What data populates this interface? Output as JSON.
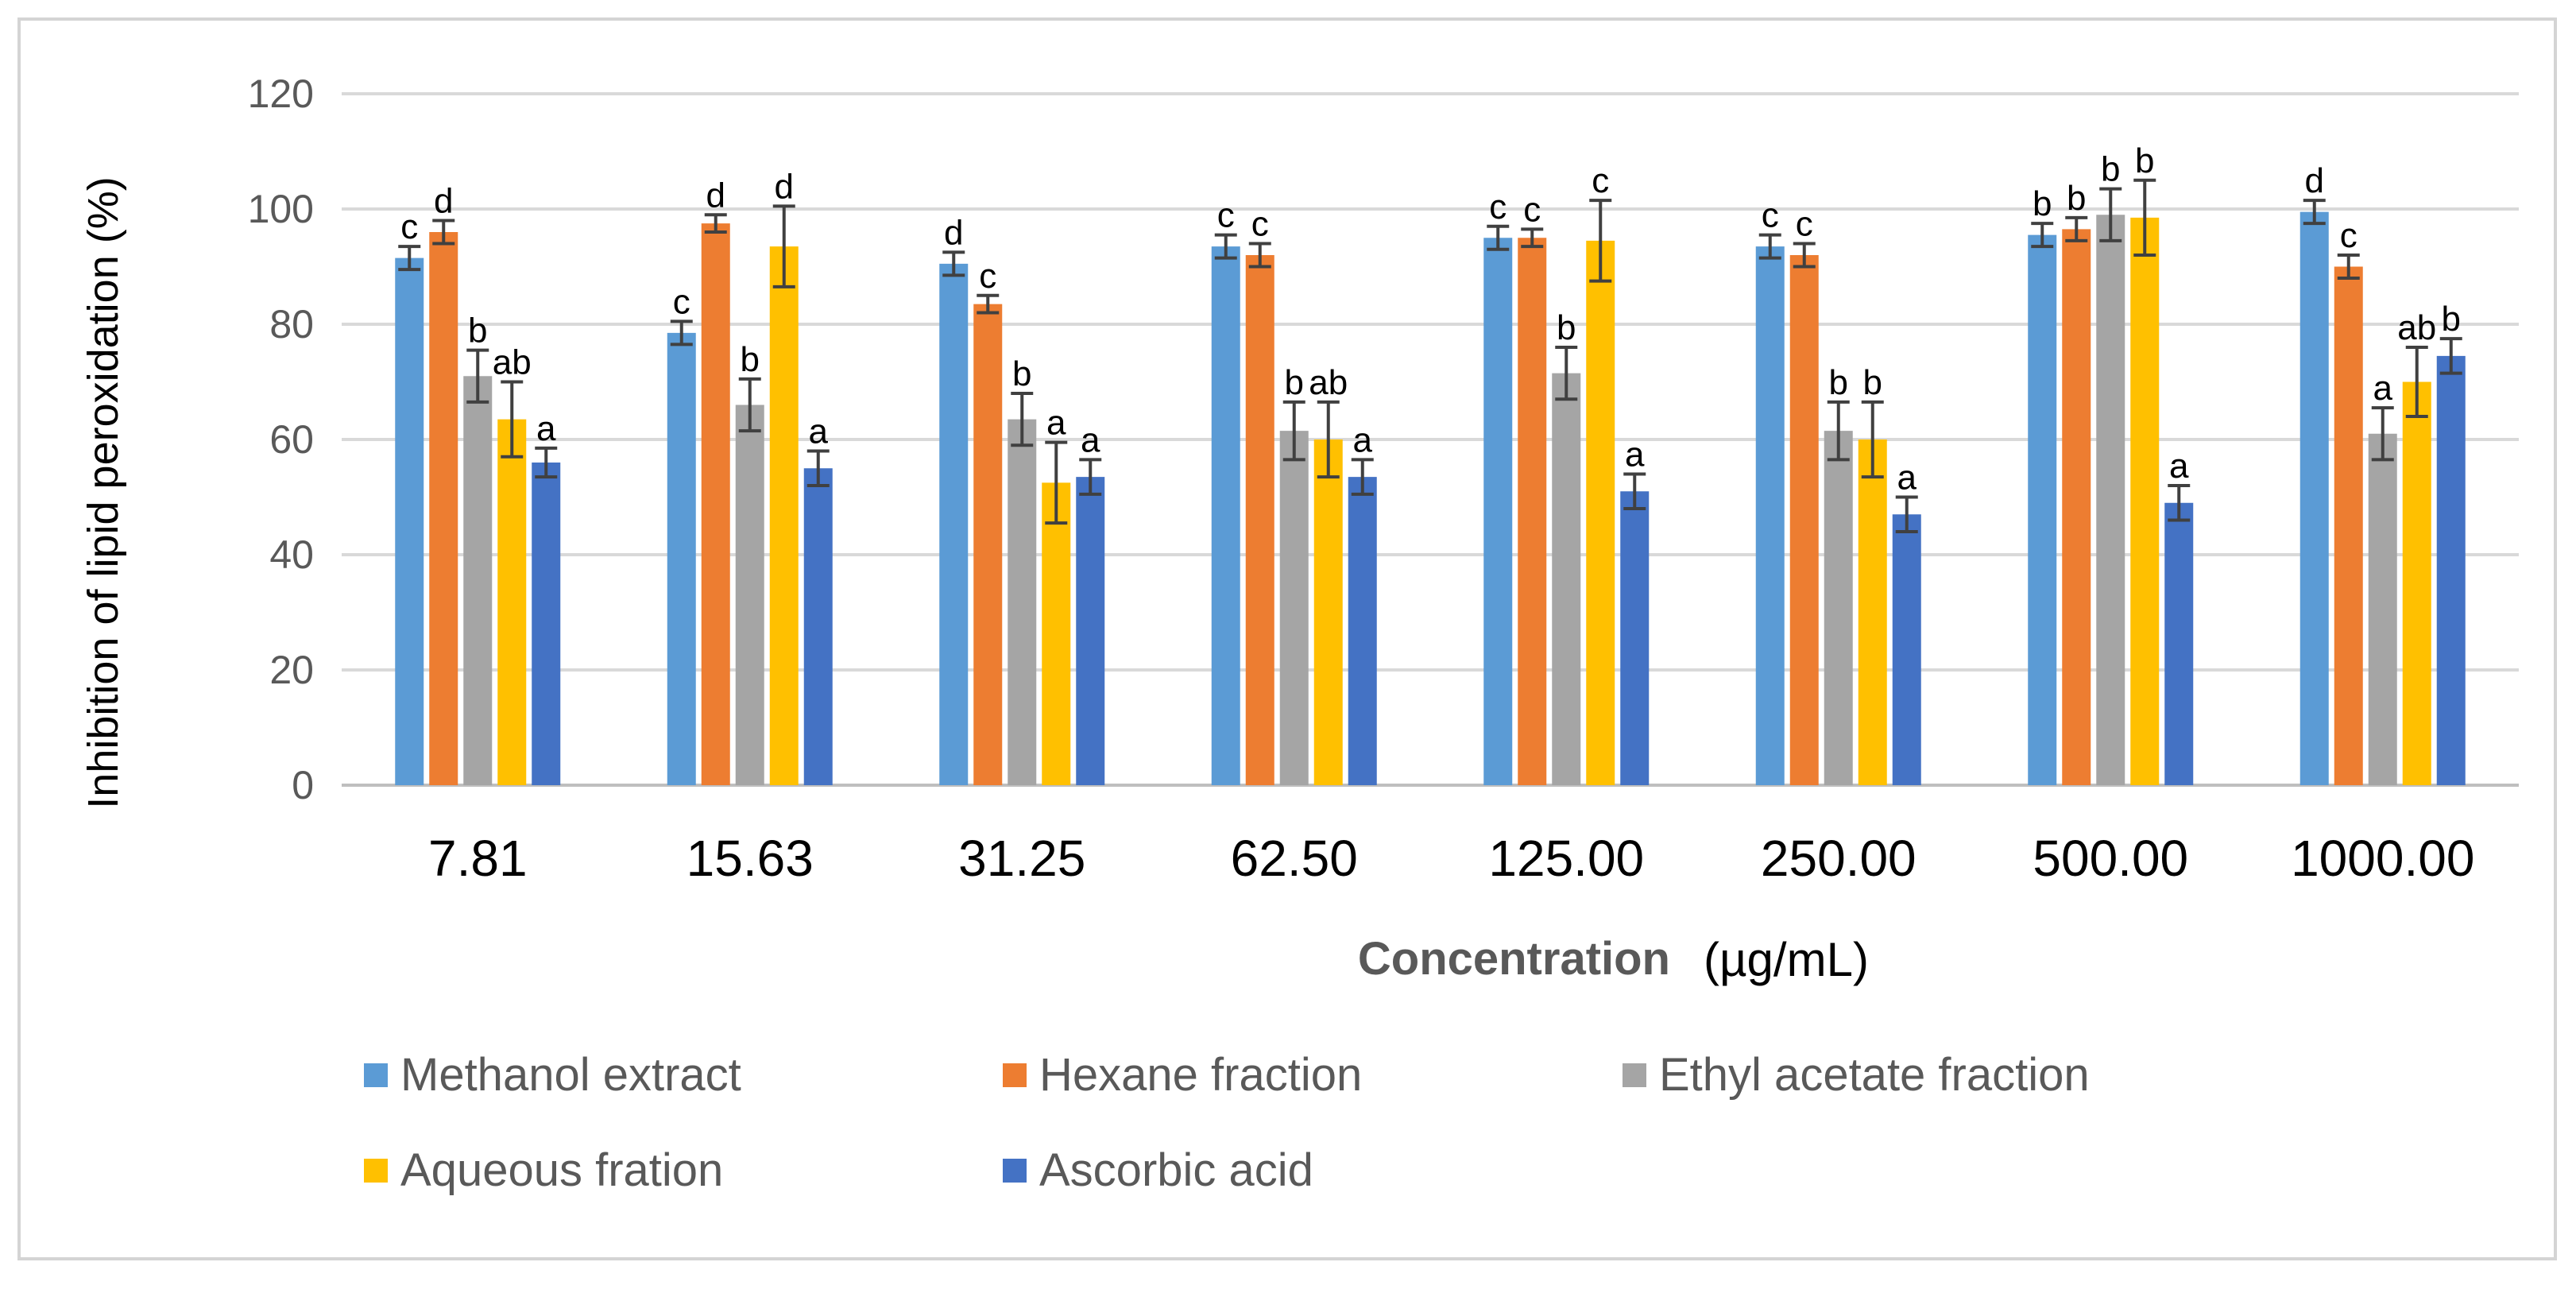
{
  "chart_data": {
    "type": "bar",
    "ylabel": "Inhibition of lipid peroxidation (%)",
    "xlabel": "Concentration",
    "xlabel_unit": "(µg/mL)",
    "ylim": [
      0,
      120
    ],
    "yticks": [
      0,
      20,
      40,
      60,
      80,
      100,
      120
    ],
    "grid": true,
    "legend_position": "bottom",
    "categories": [
      "7.81",
      "15.63",
      "31.25",
      "62.50",
      "125.00",
      "250.00",
      "500.00",
      "1000.00"
    ],
    "series": [
      {
        "name": "Methanol extract",
        "color": "#5b9bd5",
        "values": [
          91.5,
          78.5,
          90.5,
          93.5,
          95,
          93.5,
          95.5,
          99.5
        ],
        "errors": [
          2,
          2,
          2,
          2,
          2,
          2,
          2,
          2
        ],
        "labels": [
          "c",
          "c",
          "d",
          "c",
          "c",
          "c",
          "b",
          "d"
        ]
      },
      {
        "name": "Hexane fraction",
        "color": "#ed7d31",
        "values": [
          96,
          97.5,
          83.5,
          92,
          95,
          92,
          96.5,
          90
        ],
        "errors": [
          2,
          1.5,
          1.5,
          2,
          1.5,
          2,
          2,
          2
        ],
        "labels": [
          "d",
          "d",
          "c",
          "c",
          "c",
          "c",
          "b",
          "c"
        ]
      },
      {
        "name": "Ethyl acetate fraction",
        "color": "#a5a5a5",
        "values": [
          71,
          66,
          63.5,
          61.5,
          71.5,
          61.5,
          99,
          61
        ],
        "errors": [
          4.5,
          4.5,
          4.5,
          5,
          4.5,
          5,
          4.5,
          4.5
        ],
        "labels": [
          "b",
          "b",
          "b",
          "b",
          "b",
          "b",
          "b",
          "a"
        ]
      },
      {
        "name": "Aqueous fration",
        "color": "#ffc000",
        "values": [
          63.5,
          93.5,
          52.5,
          60,
          94.5,
          60,
          98.5,
          70
        ],
        "errors": [
          6.5,
          7,
          7,
          6.5,
          7,
          6.5,
          6.5,
          6
        ],
        "labels": [
          "ab",
          "d",
          "a",
          "ab",
          "c",
          "b",
          "b",
          "ab"
        ]
      },
      {
        "name": "Ascorbic acid",
        "color": "#4472c4",
        "values": [
          56,
          55,
          53.5,
          53.5,
          51,
          47,
          49,
          74.5
        ],
        "errors": [
          2.5,
          3,
          3,
          3,
          3,
          3,
          3,
          3
        ],
        "labels": [
          "a",
          "a",
          "a",
          "a",
          "a",
          "a",
          "a",
          "b"
        ]
      }
    ]
  }
}
